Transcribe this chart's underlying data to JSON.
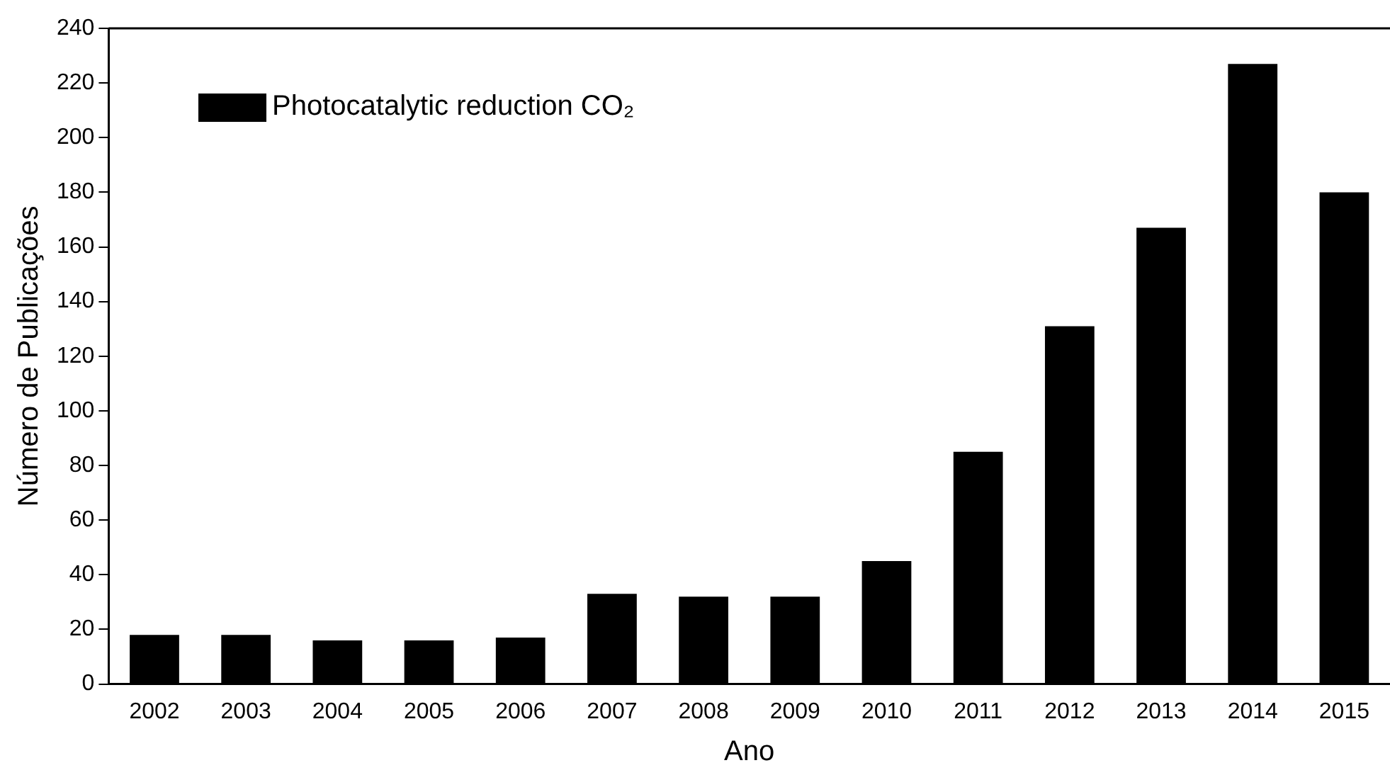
{
  "chart_data": {
    "type": "bar",
    "xlabel": "Ano",
    "ylabel": "Número de Publicações",
    "categories": [
      "2002",
      "2003",
      "2004",
      "2005",
      "2006",
      "2007",
      "2008",
      "2009",
      "2010",
      "2011",
      "2012",
      "2013",
      "2014",
      "2015"
    ],
    "series": [
      {
        "name": "Photocatalytic reduction CO₂",
        "color": "#000000",
        "values": [
          18,
          18,
          16,
          16,
          17,
          33,
          32,
          32,
          45,
          85,
          131,
          167,
          227,
          180
        ]
      }
    ],
    "ylim": [
      0,
      240
    ],
    "yticks": [
      0,
      20,
      40,
      60,
      80,
      100,
      120,
      140,
      160,
      180,
      200,
      220,
      240
    ],
    "grid": false,
    "legend": "top left"
  }
}
